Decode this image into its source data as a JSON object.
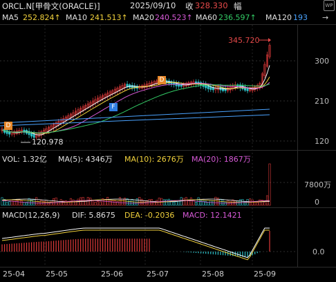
{
  "header": {
    "symbol": "ORCL.N[甲骨文(ORACLE)]",
    "date": "2025/09/10",
    "close_label": "收",
    "close_value": "328.330",
    "extra_label": "幅"
  },
  "ma_row": {
    "ma5_label": "MA5",
    "ma5_value": "252.824↑",
    "ma10_label": "MA10",
    "ma10_value": "241.513↑",
    "ma20_label": "MA20",
    "ma20_value": "240.523↑",
    "ma60_label": "MA60",
    "ma60_value": "236.597↑",
    "ma120_label": "MA120",
    "ma120_value": "193",
    "arrow": "→"
  },
  "price_axis": {
    "ticks": [
      "300",
      "210",
      "120"
    ]
  },
  "annotations": {
    "high": "345.720",
    "low": "120.978",
    "d_label": "D",
    "f_label": "F"
  },
  "volume": {
    "vol_label": "VOL: 1.32亿",
    "ma5": "MA(5): 4346万",
    "ma10": "MA(10): 2676万",
    "ma20": "MA(20): 1867万",
    "axis": [
      "7800万",
      "0"
    ]
  },
  "macd": {
    "title": "MACD(12,26,9)",
    "dif": "DIF: 5.8675",
    "dea": "DEA: -0.2036",
    "macd": "MACD: 12.1421",
    "axis": [
      "0.0"
    ]
  },
  "x_axis": {
    "labels": [
      "25-04",
      "25-05",
      "25-06",
      "25-07",
      "25-08",
      "25-09"
    ]
  },
  "colors": {
    "up": "#e03a3a",
    "down": "#2ec2c9",
    "ma5": "#ffffff",
    "ma10": "#f2d23c",
    "ma20": "#d85ad8",
    "ma60": "#33cc66",
    "ma120": "#4aa3ff"
  }
}
